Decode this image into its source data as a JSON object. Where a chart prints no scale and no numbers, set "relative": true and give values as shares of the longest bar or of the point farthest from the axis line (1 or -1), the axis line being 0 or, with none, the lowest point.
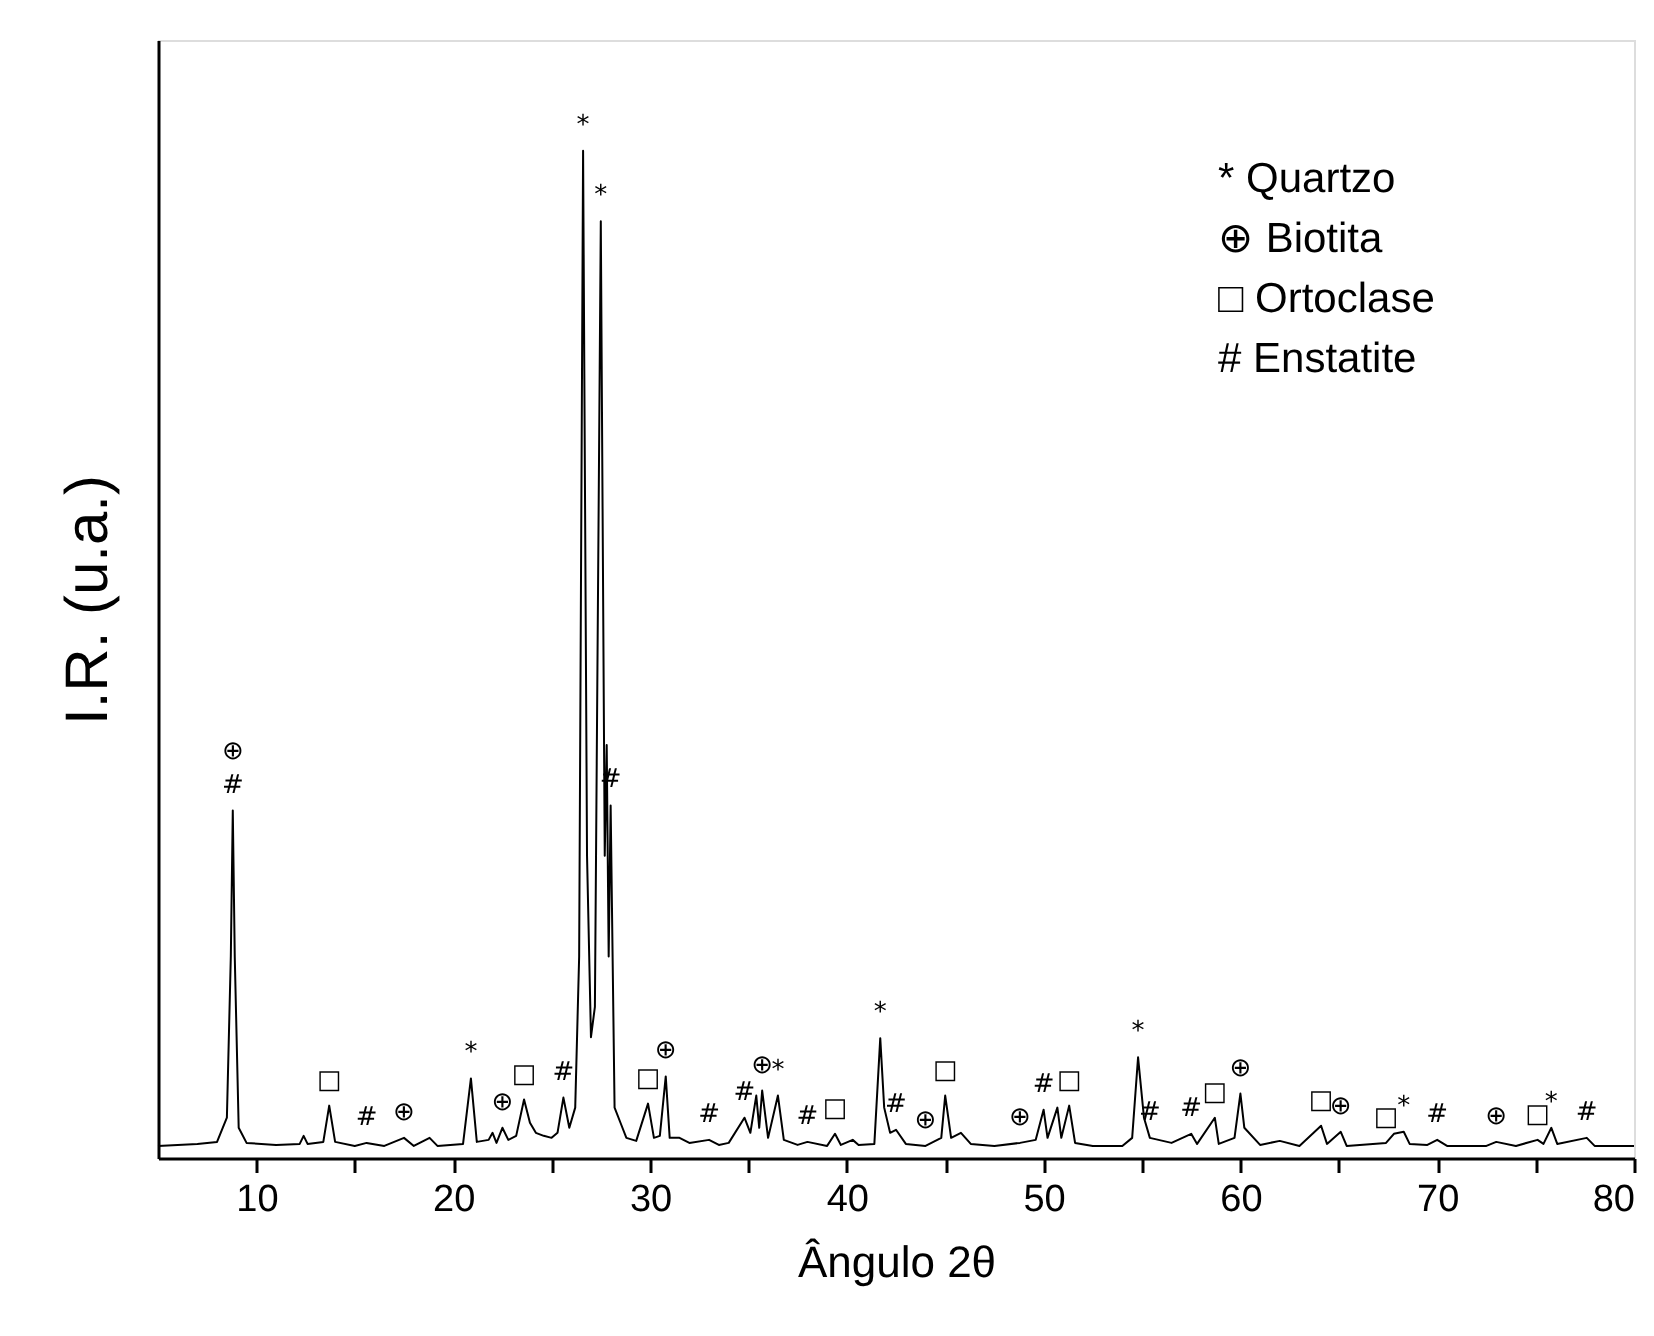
{
  "chart_data": {
    "type": "line",
    "relative": true,
    "xlabel": "Ângulo 2θ",
    "ylabel": "I.R. (u.a.)",
    "xlim": [
      5,
      80
    ],
    "xticks": [
      10,
      {
        "value": 15,
        "label": null
      },
      20,
      {
        "value": 25,
        "label": null
      },
      30,
      {
        "value": 35,
        "label": null
      },
      40,
      {
        "value": 45,
        "label": null
      },
      50,
      {
        "value": 55,
        "label": null
      },
      60,
      {
        "value": 65,
        "label": null
      },
      70,
      {
        "value": 75,
        "label": null
      },
      80
    ],
    "grid": false,
    "marker": "none",
    "line_style": "solid",
    "x": [
      5,
      6,
      7,
      8,
      8.5,
      8.7,
      8.8,
      8.9,
      9.1,
      9.5,
      11,
      12.2,
      12.4,
      12.6,
      13.4,
      13.7,
      14.0,
      15,
      15.6,
      16.5,
      17.5,
      18,
      18.8,
      19.2,
      20.5,
      20.9,
      21.2,
      21.8,
      22.0,
      22.2,
      22.5,
      22.8,
      23.2,
      23.6,
      23.9,
      24.2,
      24.6,
      25.0,
      25.3,
      25.6,
      25.9,
      26.2,
      26.4,
      26.6,
      26.8,
      27.0,
      27.2,
      27.5,
      27.7,
      27.8,
      27.9,
      28.0,
      28.2,
      28.5,
      28.8,
      29.3,
      29.9,
      30.2,
      30.5,
      30.8,
      31.0,
      31.5,
      32,
      33,
      33.5,
      34,
      34.8,
      35.1,
      35.4,
      35.55,
      35.7,
      36.0,
      36.5,
      36.8,
      37.5,
      38,
      39,
      39.4,
      39.7,
      40.3,
      40.6,
      41.4,
      41.7,
      41.9,
      42.2,
      42.5,
      43,
      44,
      44.8,
      45.0,
      45.3,
      45.8,
      46.3,
      47.5,
      48.8,
      49.6,
      50.0,
      50.2,
      50.7,
      50.9,
      51.3,
      51.6,
      52.5,
      54,
      54.5,
      54.8,
      55.1,
      55.4,
      56.5,
      57.5,
      57.8,
      58.7,
      58.9,
      59.7,
      60.0,
      60.2,
      61,
      62,
      63,
      64.1,
      64.4,
      65.1,
      65.4,
      67.4,
      67.8,
      68.3,
      68.6,
      69.5,
      70,
      70.5,
      72.5,
      73,
      74,
      75.1,
      75.4,
      75.8,
      76.1,
      77.6,
      78,
      80
    ],
    "series": [
      {
        "color": "#000000",
        "values": [
          0.012,
          0.013,
          0.014,
          0.016,
          0.04,
          0.2,
          0.345,
          0.2,
          0.03,
          0.015,
          0.013,
          0.014,
          0.022,
          0.014,
          0.016,
          0.052,
          0.016,
          0.012,
          0.015,
          0.012,
          0.02,
          0.012,
          0.02,
          0.012,
          0.014,
          0.079,
          0.016,
          0.018,
          0.025,
          0.015,
          0.03,
          0.018,
          0.022,
          0.058,
          0.035,
          0.025,
          0.022,
          0.02,
          0.025,
          0.06,
          0.03,
          0.05,
          0.2,
          1.0,
          0.3,
          0.12,
          0.15,
          0.93,
          0.3,
          0.41,
          0.2,
          0.35,
          0.05,
          0.035,
          0.02,
          0.017,
          0.054,
          0.02,
          0.022,
          0.081,
          0.02,
          0.02,
          0.015,
          0.018,
          0.013,
          0.015,
          0.04,
          0.025,
          0.062,
          0.03,
          0.067,
          0.02,
          0.062,
          0.018,
          0.013,
          0.016,
          0.012,
          0.024,
          0.013,
          0.018,
          0.013,
          0.014,
          0.119,
          0.05,
          0.025,
          0.028,
          0.014,
          0.012,
          0.02,
          0.062,
          0.02,
          0.025,
          0.014,
          0.012,
          0.015,
          0.018,
          0.048,
          0.02,
          0.05,
          0.02,
          0.052,
          0.015,
          0.012,
          0.012,
          0.02,
          0.1,
          0.04,
          0.02,
          0.015,
          0.024,
          0.014,
          0.04,
          0.014,
          0.02,
          0.064,
          0.03,
          0.013,
          0.017,
          0.012,
          0.032,
          0.014,
          0.026,
          0.012,
          0.015,
          0.024,
          0.026,
          0.014,
          0.013,
          0.018,
          0.012,
          0.012,
          0.016,
          0.012,
          0.018,
          0.014,
          0.03,
          0.014,
          0.02,
          0.012,
          0.012
        ]
      }
    ],
    "annotations": [
      "* Quartzo",
      "⊕ Biotita",
      "□ Ortoclase",
      "# Enstatite",
      {
        "text": "#",
        "x": 8.8,
        "y": 0.345
      },
      {
        "text": "⊕",
        "x": 8.8,
        "y": 0.345
      },
      {
        "text": "□",
        "x": 13.7,
        "y": 0.052
      },
      {
        "text": "#",
        "x": 15.6,
        "y": 0.015
      },
      {
        "text": "⊕",
        "x": 17.5,
        "y": 0.02
      },
      {
        "text": "*",
        "x": 20.9,
        "y": 0.079
      },
      {
        "text": "⊕",
        "x": 22.5,
        "y": 0.03
      },
      {
        "text": "□",
        "x": 23.6,
        "y": 0.058
      },
      {
        "text": "#",
        "x": 25.6,
        "y": 0.06
      },
      {
        "text": "*",
        "x": 26.6,
        "y": 1.0
      },
      {
        "text": "*",
        "x": 27.5,
        "y": 0.93
      },
      {
        "text": "#",
        "x": 28.0,
        "y": 0.35
      },
      {
        "text": "□",
        "x": 29.9,
        "y": 0.054
      },
      {
        "text": "⊕",
        "x": 30.8,
        "y": 0.081
      },
      {
        "text": "#",
        "x": 33,
        "y": 0.018
      },
      {
        "text": "#",
        "x": 34.8,
        "y": 0.04
      },
      {
        "text": "⊕",
        "x": 35.7,
        "y": 0.067
      },
      {
        "text": "*",
        "x": 36.5,
        "y": 0.062
      },
      {
        "text": "#",
        "x": 38,
        "y": 0.016
      },
      {
        "text": "□",
        "x": 39.4,
        "y": 0.024
      },
      {
        "text": "*",
        "x": 41.7,
        "y": 0.119
      },
      {
        "text": "#",
        "x": 42.5,
        "y": 0.028
      },
      {
        "text": "⊕",
        "x": 44,
        "y": 0.012
      },
      {
        "text": "□",
        "x": 45.0,
        "y": 0.062
      },
      {
        "text": "⊕",
        "x": 48.8,
        "y": 0.015
      },
      {
        "text": "#",
        "x": 50.0,
        "y": 0.048
      },
      {
        "text": "□",
        "x": 51.3,
        "y": 0.052
      },
      {
        "text": "*",
        "x": 54.8,
        "y": 0.1
      },
      {
        "text": "#",
        "x": 55.4,
        "y": 0.02
      },
      {
        "text": "#",
        "x": 57.5,
        "y": 0.024
      },
      {
        "text": "□",
        "x": 58.7,
        "y": 0.04
      },
      {
        "text": "⊕",
        "x": 60.0,
        "y": 0.064
      },
      {
        "text": "□",
        "x": 64.1,
        "y": 0.032
      },
      {
        "text": "⊕",
        "x": 65.1,
        "y": 0.026
      },
      {
        "text": "□",
        "x": 67.4,
        "y": 0.015
      },
      {
        "text": "*",
        "x": 68.3,
        "y": 0.026
      },
      {
        "text": "#",
        "x": 70,
        "y": 0.018
      },
      {
        "text": "⊕",
        "x": 73,
        "y": 0.016
      },
      {
        "text": "□",
        "x": 75.1,
        "y": 0.018
      },
      {
        "text": "*",
        "x": 75.8,
        "y": 0.03
      },
      {
        "text": "#",
        "x": 77.6,
        "y": 0.02
      }
    ]
  }
}
